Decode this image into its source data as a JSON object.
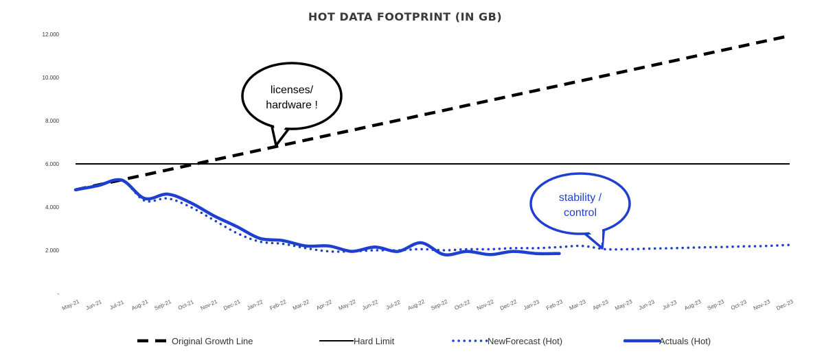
{
  "chart_data": {
    "type": "line",
    "title": "HOT DATA FOOTPRINT (IN GB)",
    "xlabel": "",
    "ylabel": "",
    "ylim": [
      0,
      12000
    ],
    "yticks": [
      "-",
      "2.000",
      "4.000",
      "6.000",
      "8.000",
      "10.000",
      "12.000"
    ],
    "categories": [
      "May-21",
      "Jun-21",
      "Jul-21",
      "Aug-21",
      "Sep-21",
      "Oct-21",
      "Nov-21",
      "Dec-21",
      "Jan-22",
      "Feb-22",
      "Mar-22",
      "Apr-22",
      "May-22",
      "Jun-22",
      "Jul-22",
      "Aug-22",
      "Sep-22",
      "Oct-22",
      "Nov-22",
      "Dec-22",
      "Jan-23",
      "Feb-23",
      "Mar-23",
      "Apr-23",
      "May-23",
      "Jun-23",
      "Jul-23",
      "Aug-23",
      "Sep-23",
      "Oct-23",
      "Nov-23",
      "Dec-23"
    ],
    "series": [
      {
        "name": "Original Growth Line",
        "color": "#000000",
        "style": "dashed",
        "values": [
          4800,
          5030,
          5260,
          5490,
          5720,
          5950,
          6180,
          6410,
          6640,
          6870,
          7100,
          7330,
          7560,
          7790,
          8020,
          8250,
          8480,
          8710,
          8940,
          9170,
          9400,
          9630,
          9860,
          10090,
          10320,
          10550,
          10780,
          11010,
          11240,
          11470,
          11700,
          11930
        ]
      },
      {
        "name": "Hard Limit",
        "color": "#000000",
        "style": "solid-thin",
        "values": [
          6000,
          6000,
          6000,
          6000,
          6000,
          6000,
          6000,
          6000,
          6000,
          6000,
          6000,
          6000,
          6000,
          6000,
          6000,
          6000,
          6000,
          6000,
          6000,
          6000,
          6000,
          6000,
          6000,
          6000,
          6000,
          6000,
          6000,
          6000,
          6000,
          6000,
          6000,
          6000
        ]
      },
      {
        "name": "NewForecast (Hot)",
        "color": "#1f3fd0",
        "style": "dotted",
        "values": [
          4800,
          5000,
          5250,
          4300,
          4400,
          4000,
          3400,
          2800,
          2400,
          2300,
          2100,
          1950,
          1950,
          2000,
          2000,
          2050,
          2000,
          2050,
          2050,
          2100,
          2100,
          2150,
          2200,
          2050,
          2050,
          2080,
          2100,
          2130,
          2150,
          2180,
          2200,
          2250
        ]
      },
      {
        "name": "Actuals (Hot)",
        "color": "#1f3fd0",
        "style": "solid-thick",
        "values": [
          4800,
          5000,
          5250,
          4400,
          4600,
          4200,
          3600,
          3100,
          2550,
          2450,
          2200,
          2200,
          1950,
          2150,
          1950,
          2350,
          1800,
          1950,
          1800,
          1950,
          1850,
          1850,
          null,
          null,
          null,
          null,
          null,
          null,
          null,
          null,
          null,
          null
        ]
      }
    ],
    "legend_position": "bottom",
    "grid": false,
    "annotations": [
      {
        "text": [
          "licenses/",
          "hardware !"
        ],
        "color": "#000000",
        "points_to": "Feb-22"
      },
      {
        "text": [
          "stability /",
          "control"
        ],
        "color": "#1f3fd0",
        "points_to": "Apr-23"
      }
    ]
  }
}
